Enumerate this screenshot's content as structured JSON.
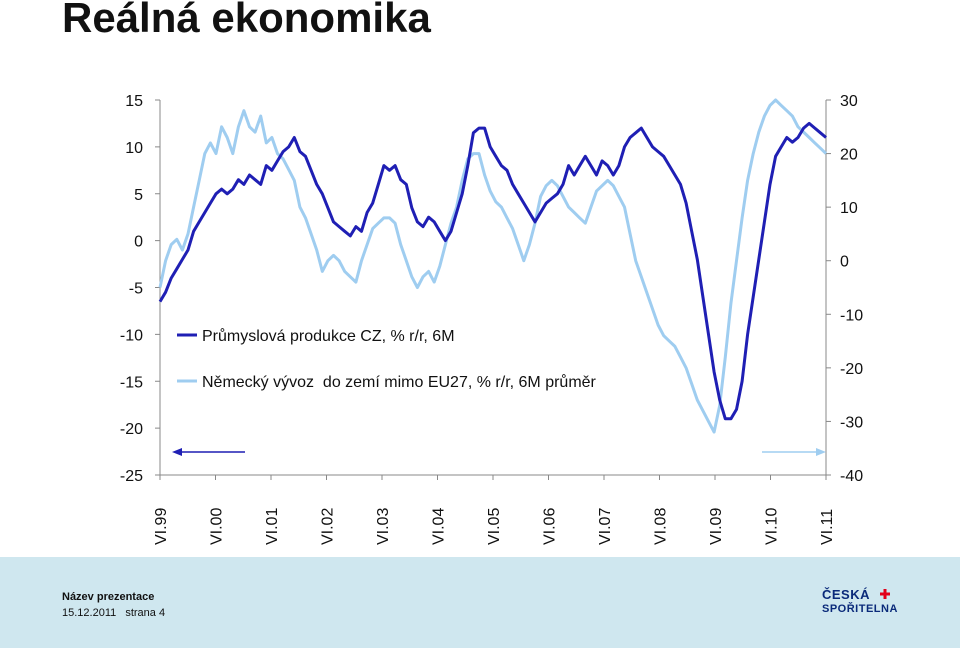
{
  "slide": {
    "title": "Reálná ekonomika",
    "footer_name": "Název prezentace",
    "footer_date": "15.12.2011",
    "footer_page": "strana 4",
    "logo_line1": "ČESKÁ",
    "logo_line2": "SPOŘITELNA",
    "logo_icon": "bank-logo-mark-icon",
    "footer_color": "#cfe7ef",
    "logo_color": "#0a2a7a",
    "logo_accent": "#e2001a"
  },
  "chart_data": {
    "type": "line",
    "title": "",
    "xlabel": "",
    "ylabel": "",
    "ylim": [
      -25,
      15
    ],
    "y2lim": [
      -40,
      30
    ],
    "yticks": [
      "15",
      "10",
      "5",
      "0",
      "-5",
      "-10",
      "-15",
      "-20",
      "-25"
    ],
    "y2ticks": [
      "30",
      "20",
      "10",
      "0",
      "-10",
      "-20",
      "-30",
      "-40"
    ],
    "xticks": [
      "VI.99",
      "VI.00",
      "VI.01",
      "VI.02",
      "VI.03",
      "VI.04",
      "VI.05",
      "VI.06",
      "VI.07",
      "VI.08",
      "VI.09",
      "VI.10",
      "VI.11"
    ],
    "grid": false,
    "legend_position": "inside-left",
    "series": [
      {
        "name": "Průmyslová produkce CZ, % r/r, 6M",
        "axis": "left",
        "color": "#1f1fb4",
        "start": "1999-06",
        "values": [
          -6.5,
          -5.5,
          -4,
          -3,
          -2,
          -1,
          1,
          2,
          3,
          4,
          5,
          5.5,
          5,
          5.5,
          6.5,
          6,
          7,
          6.5,
          6,
          8,
          7.5,
          8.5,
          9.5,
          10,
          11,
          9.5,
          9,
          7.5,
          6,
          5,
          3.5,
          2,
          1.5,
          1,
          0.5,
          1.5,
          1,
          3,
          4,
          6,
          8,
          7.5,
          8,
          6.5,
          6,
          3.5,
          2,
          1.5,
          2.5,
          2,
          1,
          0,
          1,
          3,
          5,
          8,
          11.5,
          12,
          12,
          10,
          9,
          8,
          7.5,
          6,
          5,
          4,
          3,
          2,
          3,
          4,
          4.5,
          5,
          6,
          8,
          7,
          8,
          9,
          8,
          7,
          8.5,
          8,
          7,
          8,
          10,
          11,
          11.5,
          12,
          11,
          10,
          9.5,
          9,
          8,
          7,
          6,
          4,
          1,
          -2,
          -6,
          -10,
          -14,
          -17,
          -19,
          -19,
          -18,
          -15,
          -10,
          -6,
          -2,
          2,
          6,
          9,
          10,
          11,
          10.5,
          11,
          12,
          12.5,
          12,
          11.5,
          11
        ]
      },
      {
        "name": "Německý vývoz  do zemí mimo EU27, % r/r, 6M průměr",
        "axis": "right",
        "color": "#9fcdf0",
        "start": "1999-06",
        "values": [
          -5,
          0,
          3,
          4,
          2,
          5,
          10,
          15,
          20,
          22,
          20,
          25,
          23,
          20,
          25,
          28,
          25,
          24,
          27,
          22,
          23,
          20,
          19,
          17,
          15,
          10,
          8,
          5,
          2,
          -2,
          0,
          1,
          0,
          -2,
          -3,
          -4,
          0,
          3,
          6,
          7,
          8,
          8,
          7,
          3,
          0,
          -3,
          -5,
          -3,
          -2,
          -4,
          -1,
          3,
          7,
          10,
          15,
          19,
          20,
          20,
          16,
          13,
          11,
          10,
          8,
          6,
          3,
          0,
          3,
          7,
          12,
          14,
          15,
          14,
          12,
          10,
          9,
          8,
          7,
          10,
          13,
          14,
          15,
          14,
          12,
          10,
          5,
          0,
          -3,
          -6,
          -9,
          -12,
          -14,
          -15,
          -16,
          -18,
          -20,
          -23,
          -26,
          -28,
          -30,
          -32,
          -27,
          -18,
          -8,
          0,
          8,
          15,
          20,
          24,
          27,
          29,
          30,
          29,
          28,
          27,
          25,
          24,
          23,
          22,
          21,
          20
        ]
      }
    ]
  }
}
